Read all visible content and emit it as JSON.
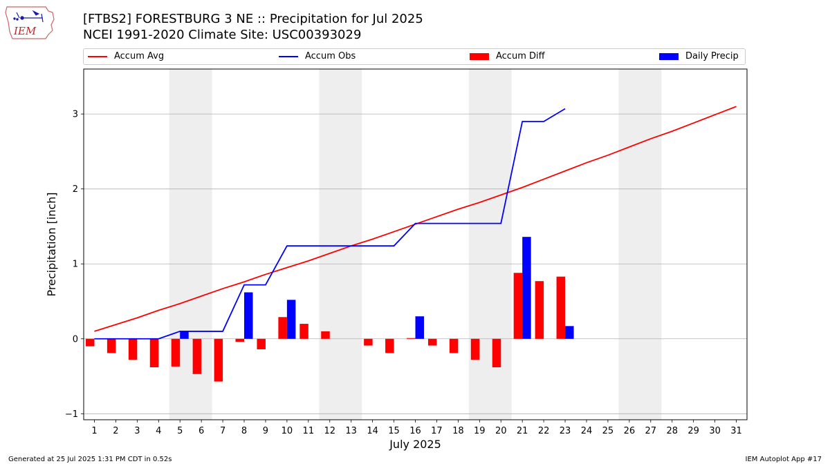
{
  "header": {
    "title_line1": "[FTBS2] FORESTBURG 3 NE :: Precipitation for Jul 2025",
    "title_line2": "NCEI 1991-2020 Climate Site: USC00393029",
    "logo_text": "IEM"
  },
  "legend": {
    "accum_avg": "Accum Avg",
    "accum_obs": "Accum Obs",
    "accum_diff": "Accum Diff",
    "daily_precip": "Daily Precip"
  },
  "footer": {
    "left": "Generated at 25 Jul 2025 1:31 PM CDT in 0.52s",
    "right": "IEM Autoplot App #17"
  },
  "colors": {
    "avg": "#ff0000",
    "obs": "#0000ff",
    "diff": "#ff0000",
    "daily": "#0000ff",
    "weekend": "#eeeeee",
    "grid": "#b0b0b0"
  },
  "chart_data": {
    "type": "bar+line",
    "xlabel": "July 2025",
    "ylabel": "Precipitation [inch]",
    "xlim": [
      0.5,
      31.5
    ],
    "ylim": [
      -1.08,
      3.6
    ],
    "yticks": [
      -1,
      0,
      1,
      2,
      3
    ],
    "days": [
      1,
      2,
      3,
      4,
      5,
      6,
      7,
      8,
      9,
      10,
      11,
      12,
      13,
      14,
      15,
      16,
      17,
      18,
      19,
      20,
      21,
      22,
      23,
      24,
      25,
      26,
      27,
      28,
      29,
      30,
      31
    ],
    "weekend_bands": [
      [
        4.5,
        6.5
      ],
      [
        11.5,
        13.5
      ],
      [
        18.5,
        20.5
      ],
      [
        25.5,
        27.5
      ]
    ],
    "series": [
      {
        "name": "Accum Avg",
        "type": "line",
        "values": [
          0.1,
          0.19,
          0.28,
          0.38,
          0.47,
          0.57,
          0.67,
          0.76,
          0.86,
          0.95,
          1.04,
          1.14,
          1.24,
          1.33,
          1.43,
          1.53,
          1.63,
          1.73,
          1.82,
          1.92,
          2.02,
          2.13,
          2.24,
          2.35,
          2.45,
          2.56,
          2.67,
          2.77,
          2.88,
          2.99,
          3.1
        ]
      },
      {
        "name": "Accum Obs",
        "type": "line",
        "values": [
          0.0,
          0.0,
          0.0,
          0.0,
          0.1,
          0.1,
          0.1,
          0.72,
          0.72,
          1.24,
          1.24,
          1.24,
          1.24,
          1.24,
          1.24,
          1.54,
          1.54,
          1.54,
          1.54,
          1.54,
          2.9,
          2.9,
          3.07
        ]
      },
      {
        "name": "Accum Diff",
        "type": "bar",
        "values": [
          -0.1,
          -0.19,
          -0.28,
          -0.38,
          -0.37,
          -0.47,
          -0.57,
          -0.04,
          -0.14,
          0.29,
          0.2,
          0.1,
          0.0,
          -0.09,
          -0.19,
          0.01,
          -0.09,
          -0.19,
          -0.28,
          -0.38,
          0.88,
          0.77,
          0.83
        ]
      },
      {
        "name": "Daily Precip",
        "type": "bar",
        "values": [
          0.0,
          0.0,
          0.0,
          0.0,
          0.1,
          0.0,
          0.0,
          0.62,
          0.0,
          0.52,
          0.0,
          0.0,
          0.0,
          0.0,
          0.0,
          0.3,
          0.0,
          0.0,
          0.0,
          0.0,
          1.36,
          0.0,
          0.17
        ]
      }
    ]
  }
}
